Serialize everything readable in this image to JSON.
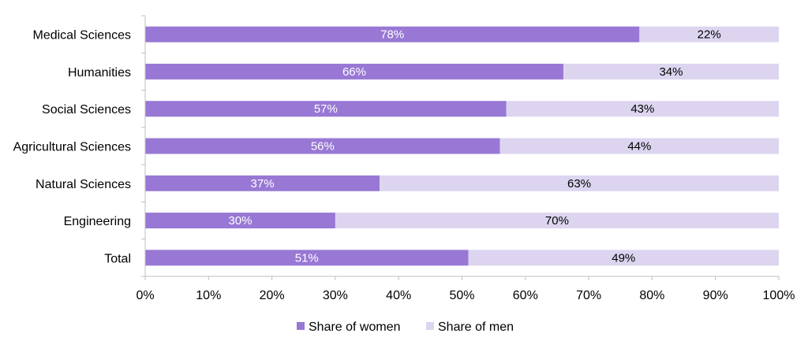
{
  "chart_data": {
    "type": "bar",
    "orientation": "horizontal",
    "stacked": true,
    "categories": [
      "Medical Sciences",
      "Humanities",
      "Social Sciences",
      "Agricultural Sciences",
      "Natural Sciences",
      "Engineering",
      "Total"
    ],
    "series": [
      {
        "name": "Share of women",
        "values": [
          78,
          66,
          57,
          56,
          37,
          30,
          51
        ],
        "labels": [
          "78%",
          "66%",
          "57%",
          "56%",
          "37%",
          "30%",
          "51%"
        ],
        "color": "#9878d4",
        "label_color": "#ffffff"
      },
      {
        "name": "Share of men",
        "values": [
          22,
          34,
          43,
          44,
          63,
          70,
          49
        ],
        "labels": [
          "22%",
          "34%",
          "43%",
          "44%",
          "63%",
          "70%",
          "49%"
        ],
        "color": "#ddd5f0",
        "label_color": "#000000"
      }
    ],
    "xlim": [
      0,
      100
    ],
    "xticks": [
      "0%",
      "10%",
      "20%",
      "30%",
      "40%",
      "50%",
      "60%",
      "70%",
      "80%",
      "90%",
      "100%"
    ],
    "grid": false,
    "legend_position": "bottom"
  }
}
